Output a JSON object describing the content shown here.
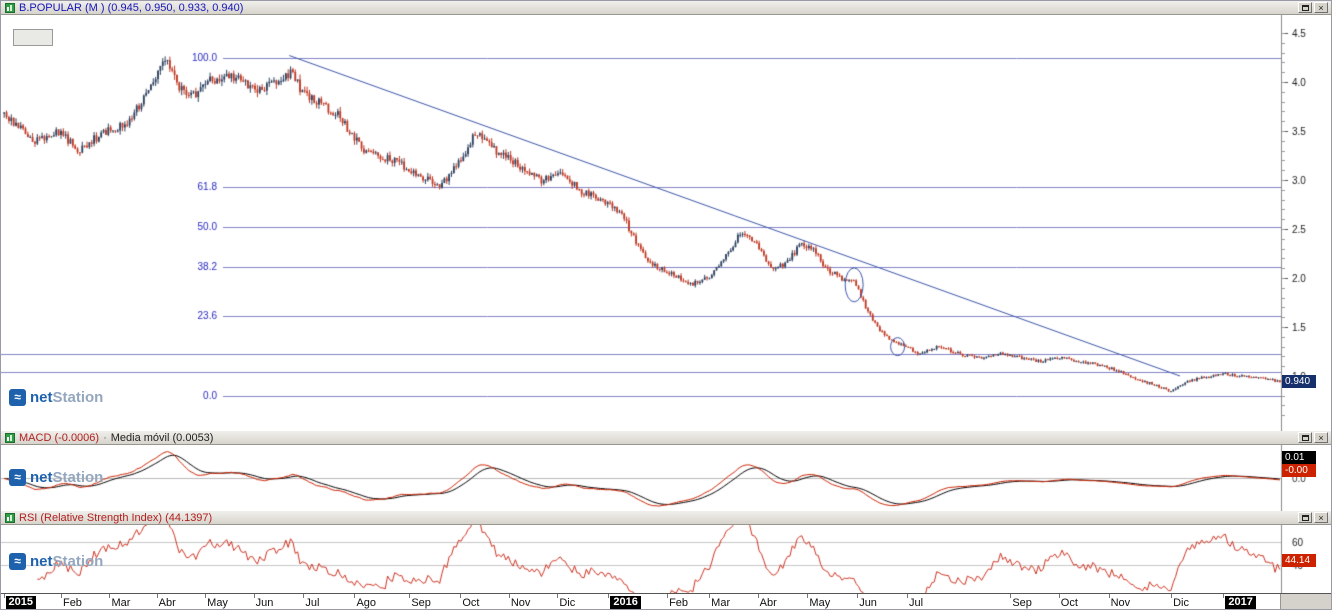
{
  "window": {
    "app": "netStation"
  },
  "icons": {
    "close": "×"
  },
  "logo": {
    "mark": "≈",
    "net": "net",
    "station": "Station"
  },
  "colors": {
    "up_candle": "#2e4260",
    "down_candle": "#c03a25",
    "fib_line": "#8282c4",
    "fib_text": "#2929c0",
    "trend_line": "#3c55a8",
    "support_line": "#8282c4",
    "axis_text": "#1a1a1a",
    "macd_line": "#cc2200",
    "signal_line": "#000000",
    "rsi_line": "#cc3322",
    "last_price_bg": "#17306b",
    "macd_box1_bg": "#000000",
    "macd_box2_bg": "#cc2200",
    "rsi_box_bg": "#cc2200"
  },
  "panels": {
    "price": {
      "title": "B.POPULAR (M ) (0.945, 0.950, 0.933, 0.940)",
      "last_price_label": "0.940"
    },
    "macd": {
      "title_macd": "MACD (-0.0006)",
      "title_separator": "·",
      "title_signal": "Media móvil (0.0053)",
      "zero_label": "0.0",
      "value_boxes": [
        {
          "label": "0.01"
        },
        {
          "label": "-0.00"
        }
      ]
    },
    "rsi": {
      "title": "RSI (Relative Strength Index) (44.1397)",
      "value_box": "44.14"
    }
  },
  "time_axis": {
    "labels": [
      {
        "text": "2015",
        "t": 0.002,
        "year": true
      },
      {
        "text": "Feb",
        "t": 0.047
      },
      {
        "text": "Mar",
        "t": 0.085
      },
      {
        "text": "Abr",
        "t": 0.122
      },
      {
        "text": "May",
        "t": 0.16
      },
      {
        "text": "Jun",
        "t": 0.198
      },
      {
        "text": "Jul",
        "t": 0.237
      },
      {
        "text": "Ago",
        "t": 0.277
      },
      {
        "text": "Sep",
        "t": 0.32
      },
      {
        "text": "Oct",
        "t": 0.36
      },
      {
        "text": "Nov",
        "t": 0.398
      },
      {
        "text": "Dic",
        "t": 0.436
      },
      {
        "text": "2016",
        "t": 0.476,
        "year": true
      },
      {
        "text": "Feb",
        "t": 0.522
      },
      {
        "text": "Mar",
        "t": 0.555
      },
      {
        "text": "Abr",
        "t": 0.593
      },
      {
        "text": "May",
        "t": 0.632
      },
      {
        "text": "Jun",
        "t": 0.671
      },
      {
        "text": "Jul",
        "t": 0.71
      },
      {
        "text": "Sep",
        "t": 0.791
      },
      {
        "text": "Oct",
        "t": 0.829
      },
      {
        "text": "Nov",
        "t": 0.868
      },
      {
        "text": "Dic",
        "t": 0.917
      },
      {
        "text": "2017",
        "t": 0.958,
        "year": true
      }
    ]
  },
  "chart_data": {
    "type": "candlestick",
    "symbol": "B.POPULAR",
    "period_start": "2015-01",
    "period_end": "2017-02",
    "last_bar": {
      "open": 0.945,
      "high": 0.95,
      "low": 0.933,
      "close": 0.94
    },
    "indicators": {
      "macd": -0.0006,
      "macd_signal": 0.0053,
      "rsi": 44.1397
    },
    "bars": 540,
    "last_close": 0.94,
    "y_axis": {
      "ticks": [
        4.5,
        4.0,
        3.5,
        3.0,
        2.5,
        2.0,
        1.5,
        1.0
      ],
      "minor_step": 0.1,
      "min": 0.6,
      "max": 4.55
    },
    "fib_levels": [
      {
        "label": "100.0",
        "price": 4.24
      },
      {
        "label": "61.8",
        "price": 2.926
      },
      {
        "label": "50.0",
        "price": 2.52
      },
      {
        "label": "38.2",
        "price": 2.114
      },
      {
        "label": "23.6",
        "price": 1.612
      },
      {
        "label": "0.0",
        "price": 0.8
      }
    ],
    "support_lines": [
      1.224,
      1.04
    ],
    "trendline": {
      "t1": 0.224,
      "price1": 4.27,
      "t2": 0.921,
      "price2": 1.0
    },
    "ellipses": [
      {
        "t": 0.666,
        "price": 1.93,
        "rx": 9,
        "ry": 17
      },
      {
        "t": 0.7,
        "price": 1.3,
        "rx": 7,
        "ry": 9
      }
    ],
    "price_path": [
      [
        0.0,
        3.65
      ],
      [
        0.024,
        3.4
      ],
      [
        0.043,
        3.5
      ],
      [
        0.059,
        3.3
      ],
      [
        0.079,
        3.5
      ],
      [
        0.094,
        3.55
      ],
      [
        0.106,
        3.76
      ],
      [
        0.118,
        4.05
      ],
      [
        0.127,
        4.25
      ],
      [
        0.133,
        4.05
      ],
      [
        0.14,
        3.91
      ],
      [
        0.149,
        3.86
      ],
      [
        0.161,
        4.01
      ],
      [
        0.181,
        4.06
      ],
      [
        0.197,
        3.91
      ],
      [
        0.212,
        4.0
      ],
      [
        0.224,
        4.1
      ],
      [
        0.236,
        3.86
      ],
      [
        0.259,
        3.7
      ],
      [
        0.283,
        3.3
      ],
      [
        0.307,
        3.19
      ],
      [
        0.326,
        3.04
      ],
      [
        0.342,
        2.94
      ],
      [
        0.358,
        3.19
      ],
      [
        0.37,
        3.5
      ],
      [
        0.385,
        3.3
      ],
      [
        0.405,
        3.14
      ],
      [
        0.421,
        2.99
      ],
      [
        0.436,
        3.07
      ],
      [
        0.452,
        2.89
      ],
      [
        0.468,
        2.79
      ],
      [
        0.483,
        2.68
      ],
      [
        0.495,
        2.38
      ],
      [
        0.507,
        2.15
      ],
      [
        0.523,
        2.05
      ],
      [
        0.539,
        1.94
      ],
      [
        0.554,
        2.02
      ],
      [
        0.568,
        2.26
      ],
      [
        0.578,
        2.48
      ],
      [
        0.59,
        2.33
      ],
      [
        0.601,
        2.09
      ],
      [
        0.613,
        2.15
      ],
      [
        0.625,
        2.36
      ],
      [
        0.635,
        2.28
      ],
      [
        0.645,
        2.09
      ],
      [
        0.657,
        1.99
      ],
      [
        0.667,
        1.95
      ],
      [
        0.675,
        1.71
      ],
      [
        0.684,
        1.51
      ],
      [
        0.693,
        1.38
      ],
      [
        0.704,
        1.31
      ],
      [
        0.717,
        1.23
      ],
      [
        0.733,
        1.3
      ],
      [
        0.748,
        1.23
      ],
      [
        0.764,
        1.18
      ],
      [
        0.78,
        1.23
      ],
      [
        0.796,
        1.19
      ],
      [
        0.811,
        1.15
      ],
      [
        0.827,
        1.19
      ],
      [
        0.843,
        1.15
      ],
      [
        0.859,
        1.11
      ],
      [
        0.874,
        1.05
      ],
      [
        0.888,
        0.96
      ],
      [
        0.903,
        0.91
      ],
      [
        0.914,
        0.84
      ],
      [
        0.926,
        0.94
      ],
      [
        0.942,
        0.99
      ],
      [
        0.958,
        1.02
      ],
      [
        0.973,
        0.99
      ],
      [
        0.989,
        0.98
      ],
      [
        1.0,
        0.94
      ]
    ],
    "rsi_axis": {
      "min": 15,
      "max": 75,
      "grid": [
        60,
        40
      ],
      "grid_labels": [
        "60",
        "40"
      ]
    }
  }
}
